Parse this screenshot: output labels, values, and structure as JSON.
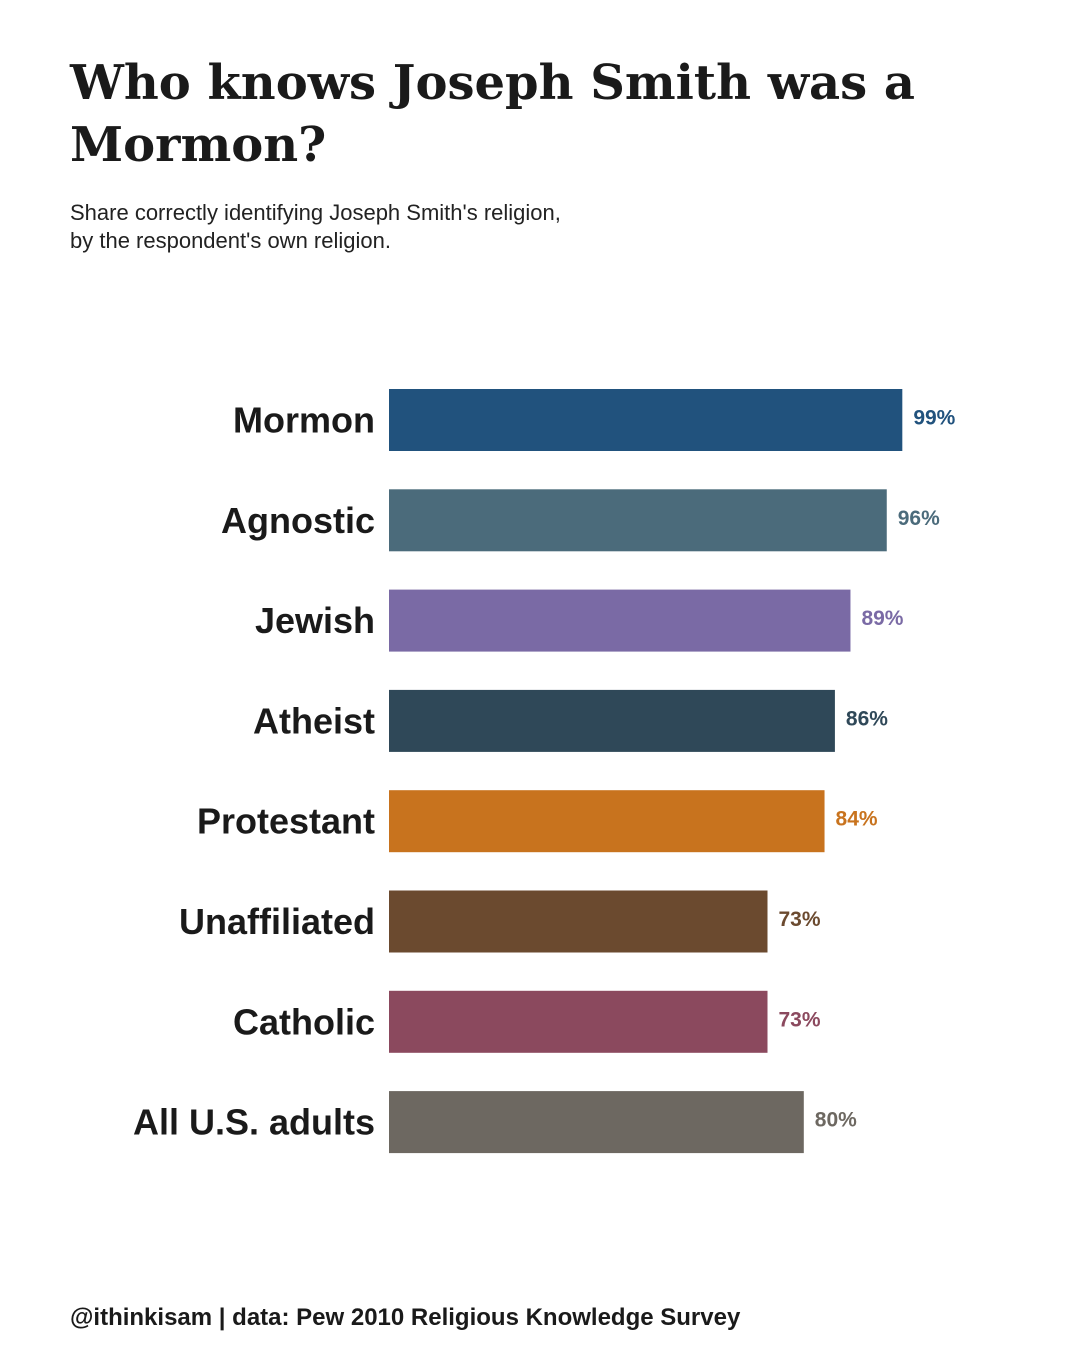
{
  "header": {
    "title": "Who knows Joseph Smith was a Mormon?",
    "subtitle_line1": "Share correctly identifying Joseph Smith's religion,",
    "subtitle_line2": "by the respondent's own religion."
  },
  "footer": {
    "credit": "@ithinkisam | data: Pew 2010 Religious Knowledge Survey"
  },
  "chart_data": {
    "type": "bar",
    "orientation": "horizontal",
    "title": "Who knows Joseph Smith was a Mormon?",
    "subtitle": "Share correctly identifying Joseph Smith's religion, by the respondent's own religion.",
    "xlabel": "",
    "ylabel": "",
    "xlim": [
      0,
      100
    ],
    "grid": false,
    "legend": "none",
    "categories": [
      "Mormon",
      "Agnostic",
      "Jewish",
      "Atheist",
      "Protestant",
      "Unaffiliated",
      "Catholic",
      "All U.S. adults"
    ],
    "values": [
      99,
      96,
      89,
      86,
      84,
      73,
      73,
      80
    ],
    "value_labels": [
      "99%",
      "96%",
      "89%",
      "86%",
      "84%",
      "73%",
      "73%",
      "80%"
    ],
    "colors": [
      "#21527d",
      "#4b6b7b",
      "#7a6aa5",
      "#2f4858",
      "#c8731e",
      "#6b4a2f",
      "#8b495e",
      "#6d6861"
    ]
  }
}
